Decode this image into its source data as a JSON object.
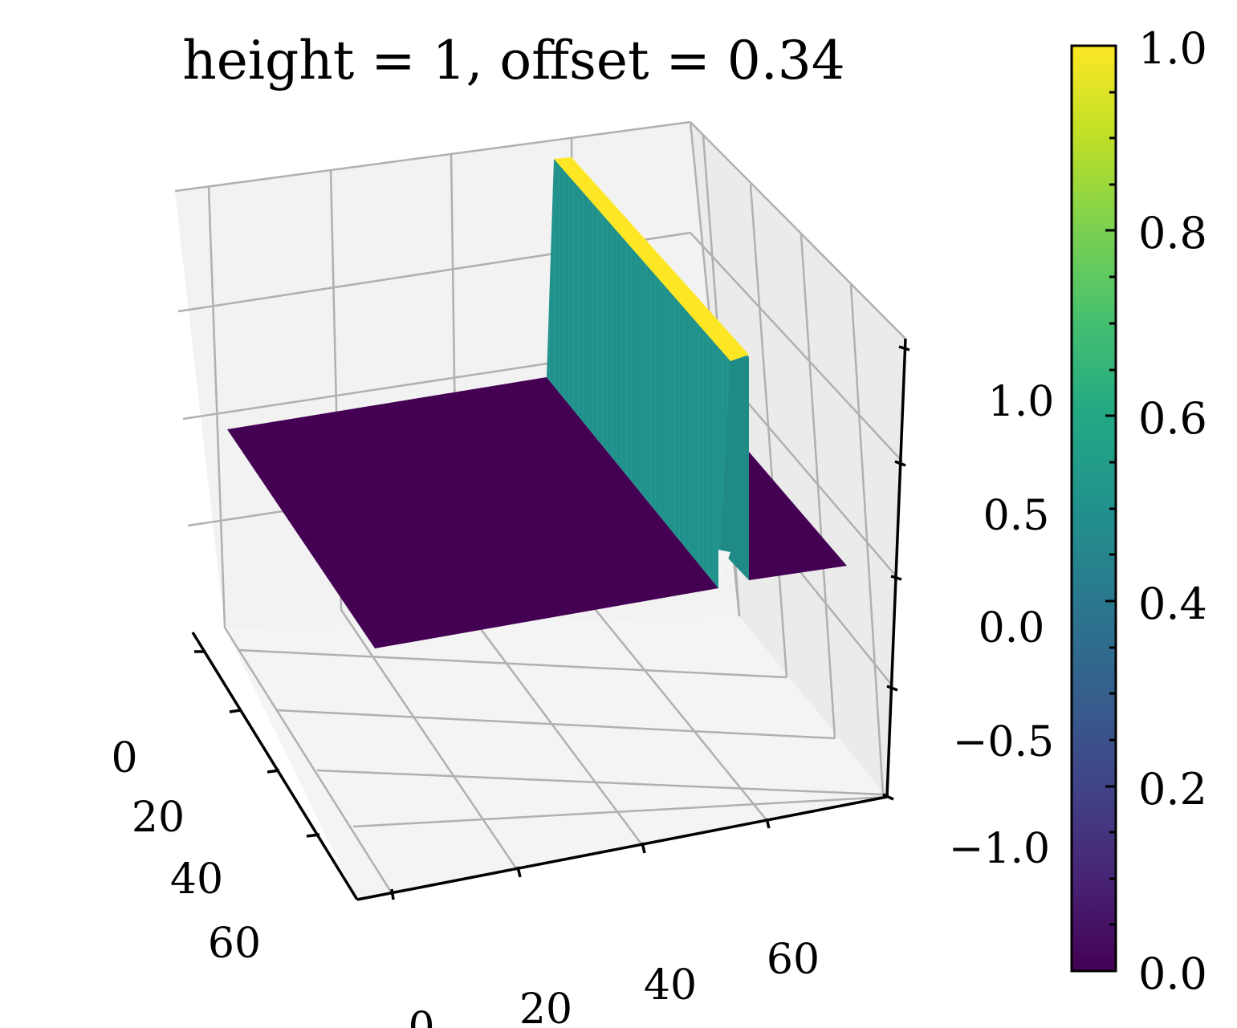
{
  "chart_data": {
    "type": "surface3d",
    "title": "height = 1, offset = 0.34",
    "xlabel": "",
    "ylabel": "",
    "zlabel": "",
    "x_ticks": [
      "0",
      "20",
      "40",
      "60"
    ],
    "y_ticks": [
      "0",
      "20",
      "40",
      "60"
    ],
    "z_ticks": [
      "−1.0",
      "−0.5",
      "0.0",
      "0.5",
      "1.0"
    ],
    "grid": true,
    "surface": {
      "description_values": {
        "base_z": 0.0,
        "ridge_z": 1.0,
        "grid_size": 80
      },
      "colormap": "viridis",
      "base_color": "#440154",
      "wall_color": "#21918c",
      "top_color": "#fde725"
    },
    "colorbar": {
      "range": [
        0.0,
        1.0
      ],
      "ticks": [
        "0.0",
        "0.2",
        "0.4",
        "0.6",
        "0.8",
        "1.0"
      ]
    }
  }
}
